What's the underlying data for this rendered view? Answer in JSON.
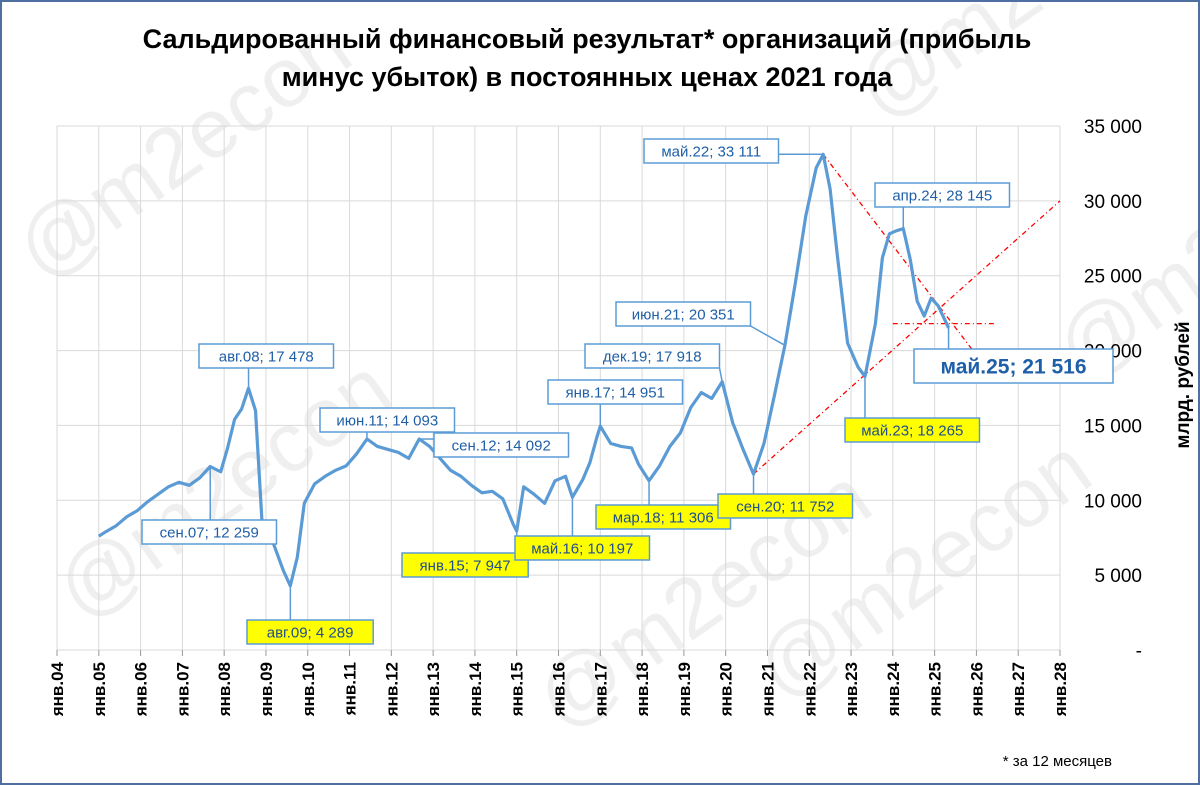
{
  "chart_data": {
    "type": "line",
    "title": [
      "Сальдированный финансовый результат* организаций (прибыль",
      "минус убыток) в постоянных ценах 2021 года"
    ],
    "ylabel": "млрд. рублей",
    "ylim": [
      0,
      35000
    ],
    "yticks": [
      "-",
      "5 000",
      "10 000",
      "15 000",
      "20 000",
      "25 000",
      "30 000",
      "35 000"
    ],
    "x_range": [
      "2004-01",
      "2028-01"
    ],
    "xticks": [
      "янв.04",
      "янв.05",
      "янв.06",
      "янв.07",
      "янв.08",
      "янв.09",
      "янв.10",
      "янв.11",
      "янв.12",
      "янв.13",
      "янв.14",
      "янв.15",
      "янв.16",
      "янв.17",
      "янв.18",
      "янв.19",
      "янв.20",
      "янв.21",
      "янв.22",
      "янв.23",
      "янв.24",
      "янв.25",
      "янв.26",
      "янв.27",
      "янв.28"
    ],
    "grid": true,
    "footnote": "* за 12 месяцев",
    "watermark": "@m2econ",
    "colors": {
      "line": "#5b9bd5",
      "label_text": "#1f5fa8",
      "label_border": "#5b9bd5",
      "yellow": "#ffff00",
      "trend": "#ff0000",
      "grid": "#d9d9d9"
    },
    "series": [
      {
        "points": [
          [
            "2005-01",
            7600
          ],
          [
            "2005-03",
            7900
          ],
          [
            "2005-06",
            8300
          ],
          [
            "2005-09",
            8900
          ],
          [
            "2005-12",
            9300
          ],
          [
            "2006-03",
            9900
          ],
          [
            "2006-06",
            10400
          ],
          [
            "2006-09",
            10900
          ],
          [
            "2006-12",
            11200
          ],
          [
            "2007-03",
            11000
          ],
          [
            "2007-06",
            11500
          ],
          [
            "2007-09",
            12259
          ],
          [
            "2007-12",
            11900
          ],
          [
            "2008-02",
            13500
          ],
          [
            "2008-04",
            15400
          ],
          [
            "2008-06",
            16100
          ],
          [
            "2008-08",
            17478
          ],
          [
            "2008-10",
            16000
          ],
          [
            "2008-12",
            8000
          ],
          [
            "2009-03",
            7200
          ],
          [
            "2009-06",
            5300
          ],
          [
            "2009-08",
            4289
          ],
          [
            "2009-10",
            6200
          ],
          [
            "2009-12",
            9800
          ],
          [
            "2010-03",
            11100
          ],
          [
            "2010-06",
            11600
          ],
          [
            "2010-09",
            12000
          ],
          [
            "2010-12",
            12300
          ],
          [
            "2011-03",
            13100
          ],
          [
            "2011-06",
            14093
          ],
          [
            "2011-09",
            13600
          ],
          [
            "2011-12",
            13400
          ],
          [
            "2012-03",
            13200
          ],
          [
            "2012-06",
            12800
          ],
          [
            "2012-09",
            14092
          ],
          [
            "2012-12",
            13600
          ],
          [
            "2013-03",
            12800
          ],
          [
            "2013-06",
            12000
          ],
          [
            "2013-09",
            11600
          ],
          [
            "2013-12",
            11000
          ],
          [
            "2014-03",
            10500
          ],
          [
            "2014-06",
            10600
          ],
          [
            "2014-09",
            10100
          ],
          [
            "2014-12",
            8400
          ],
          [
            "2015-01",
            7947
          ],
          [
            "2015-03",
            10900
          ],
          [
            "2015-06",
            10400
          ],
          [
            "2015-09",
            9800
          ],
          [
            "2015-12",
            11300
          ],
          [
            "2016-03",
            11600
          ],
          [
            "2016-05",
            10197
          ],
          [
            "2016-08",
            11400
          ],
          [
            "2016-10",
            12500
          ],
          [
            "2016-12",
            14200
          ],
          [
            "2017-01",
            14951
          ],
          [
            "2017-04",
            13800
          ],
          [
            "2017-07",
            13600
          ],
          [
            "2017-10",
            13500
          ],
          [
            "2017-12",
            12400
          ],
          [
            "2018-03",
            11306
          ],
          [
            "2018-06",
            12300
          ],
          [
            "2018-09",
            13600
          ],
          [
            "2018-12",
            14500
          ],
          [
            "2019-03",
            16200
          ],
          [
            "2019-06",
            17200
          ],
          [
            "2019-09",
            16800
          ],
          [
            "2019-12",
            17918
          ],
          [
            "2020-03",
            15200
          ],
          [
            "2020-06",
            13400
          ],
          [
            "2020-09",
            11752
          ],
          [
            "2020-12",
            13800
          ],
          [
            "2021-03",
            17000
          ],
          [
            "2021-06",
            20351
          ],
          [
            "2021-09",
            24500
          ],
          [
            "2021-12",
            29000
          ],
          [
            "2022-03",
            32200
          ],
          [
            "2022-05",
            33111
          ],
          [
            "2022-07",
            30800
          ],
          [
            "2022-09",
            26500
          ],
          [
            "2022-12",
            20500
          ],
          [
            "2023-03",
            18900
          ],
          [
            "2023-05",
            18265
          ],
          [
            "2023-08",
            21800
          ],
          [
            "2023-10",
            26200
          ],
          [
            "2023-12",
            27800
          ],
          [
            "2024-02",
            28000
          ],
          [
            "2024-04",
            28145
          ],
          [
            "2024-06",
            26100
          ],
          [
            "2024-08",
            23300
          ],
          [
            "2024-10",
            22300
          ],
          [
            "2024-12",
            23500
          ],
          [
            "2025-02",
            23000
          ],
          [
            "2025-05",
            21516
          ]
        ]
      }
    ],
    "annotations": [
      {
        "label": "сен.07;  12 259",
        "x": "2007-09",
        "y": 12259,
        "style": "white"
      },
      {
        "label": "авг.08;  17 478",
        "x": "2008-08",
        "y": 17478,
        "style": "white"
      },
      {
        "label": "авг.09;  4 289",
        "x": "2009-08",
        "y": 4289,
        "style": "yellow"
      },
      {
        "label": "июн.11;  14 093",
        "x": "2011-06",
        "y": 14093,
        "style": "white"
      },
      {
        "label": "сен.12;  14 092",
        "x": "2012-09",
        "y": 14092,
        "style": "white"
      },
      {
        "label": "янв.15;  7 947",
        "x": "2015-01",
        "y": 7947,
        "style": "yellow"
      },
      {
        "label": "май.16;  10 197",
        "x": "2016-05",
        "y": 10197,
        "style": "yellow"
      },
      {
        "label": "янв.17;  14 951",
        "x": "2017-01",
        "y": 14951,
        "style": "white"
      },
      {
        "label": "мар.18;  11 306",
        "x": "2018-03",
        "y": 11306,
        "style": "yellow"
      },
      {
        "label": "дек.19;  17 918",
        "x": "2019-12",
        "y": 17918,
        "style": "white"
      },
      {
        "label": "сен.20;  11 752",
        "x": "2020-09",
        "y": 11752,
        "style": "yellow"
      },
      {
        "label": "июн.21;  20 351",
        "x": "2021-06",
        "y": 20351,
        "style": "white"
      },
      {
        "label": "май.22;  33 111",
        "x": "2022-05",
        "y": 33111,
        "style": "white"
      },
      {
        "label": "май.23;  18 265",
        "x": "2023-05",
        "y": 18265,
        "style": "yellow"
      },
      {
        "label": "апр.24;  28 145",
        "x": "2024-04",
        "y": 28145,
        "style": "white"
      },
      {
        "label": "май.25;  21 516",
        "x": "2025-05",
        "y": 21516,
        "style": "big"
      }
    ],
    "trend_lines": [
      {
        "from": [
          "2022-05",
          33111
        ],
        "to": [
          "2025-12",
          20000
        ]
      },
      {
        "from": [
          "2020-09",
          11752
        ],
        "to": [
          "2028-01",
          30000
        ]
      },
      {
        "from": [
          "2024-01",
          21800
        ],
        "to": [
          "2026-06",
          21800
        ]
      }
    ]
  }
}
